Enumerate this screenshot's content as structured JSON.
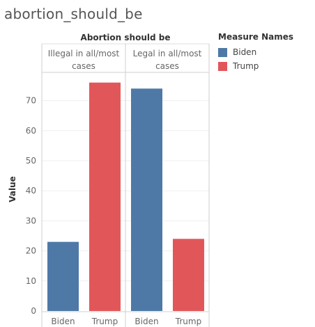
{
  "page": {
    "title": "abortion_should_be"
  },
  "colors": {
    "Biden": "#4e79a7",
    "Trump": "#e15759"
  },
  "legend": {
    "title": "Measure Names",
    "items": [
      "Biden",
      "Trump"
    ]
  },
  "chart_data": {
    "type": "bar",
    "column_title": "Abortion should be",
    "groups": [
      {
        "label_lines": [
          "Illegal in all/most",
          "cases"
        ],
        "values": {
          "Biden": 23,
          "Trump": 76
        }
      },
      {
        "label_lines": [
          "Legal in all/most",
          "cases"
        ],
        "values": {
          "Biden": 74,
          "Trump": 24
        }
      }
    ],
    "series": [
      {
        "name": "Biden"
      },
      {
        "name": "Trump"
      }
    ],
    "x_categories": [
      "Biden",
      "Trump"
    ],
    "ylabel": "Value",
    "ylim": [
      0,
      80
    ],
    "yticks": [
      0,
      10,
      20,
      30,
      40,
      50,
      60,
      70
    ],
    "grid": true
  }
}
